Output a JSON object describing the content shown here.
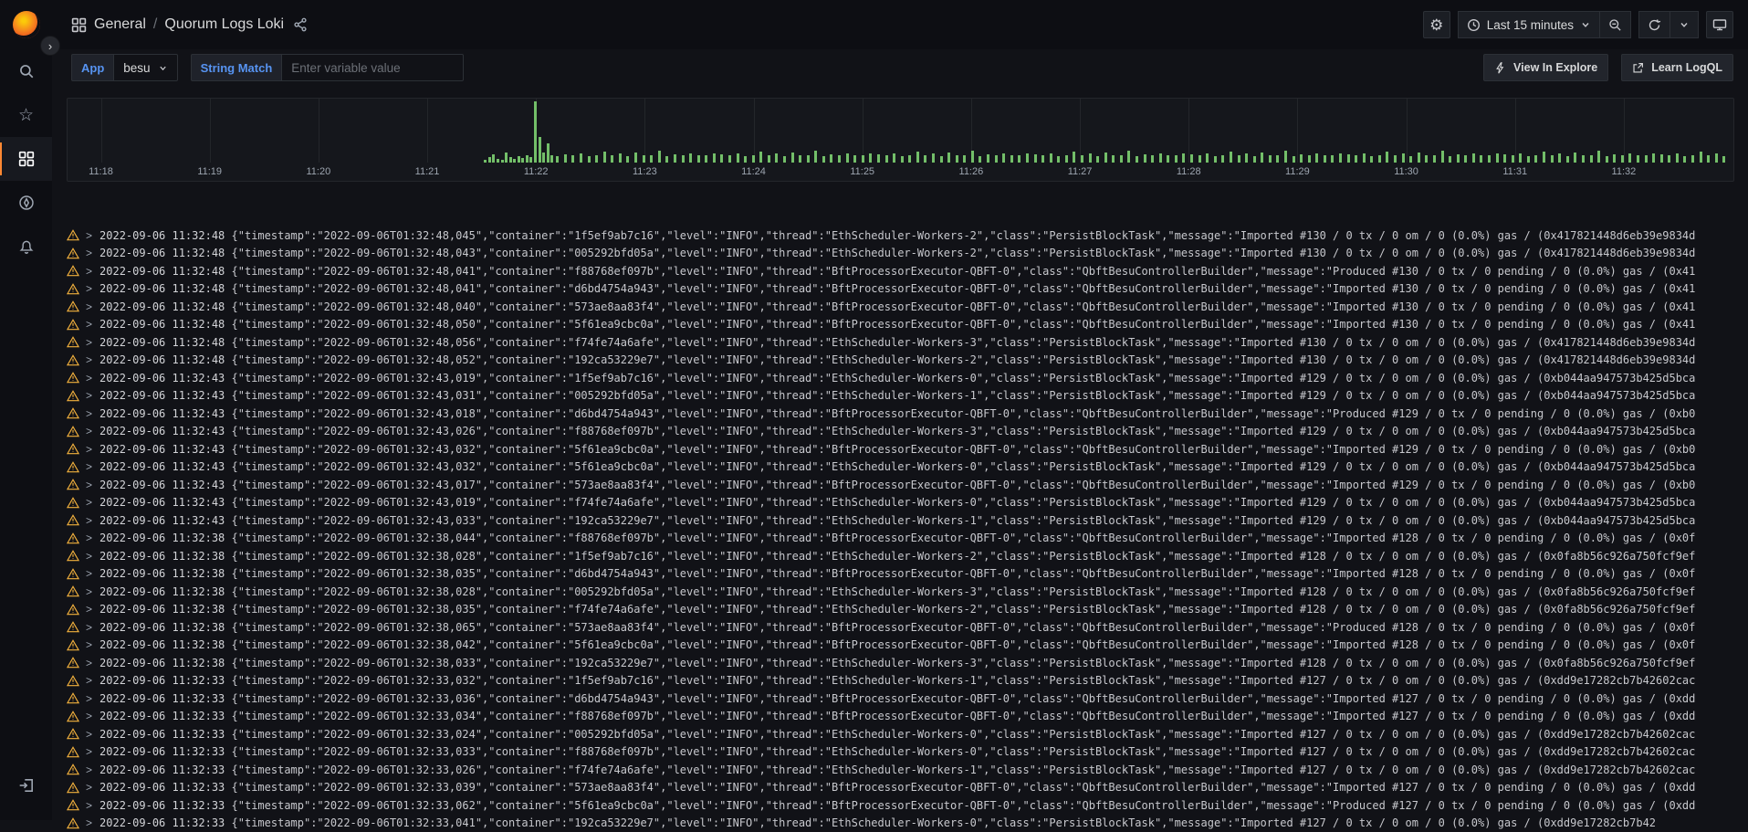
{
  "nav": {
    "breadcrumb": {
      "section": "General",
      "separator": "/",
      "page": "Quorum Logs Loki"
    },
    "time_range_label": "Last 15 minutes",
    "icons": [
      "dashboards-grid-icon",
      "share-icon",
      "gear-icon",
      "clock-icon",
      "chevron-down-icon",
      "zoom-out-icon",
      "refresh-icon",
      "tv-icon"
    ]
  },
  "sidebar": {
    "items": [
      "search",
      "starred",
      "dashboards",
      "explore",
      "alerting",
      "sign-in"
    ],
    "active_item": "dashboards",
    "expand_chevron": "›"
  },
  "variables": {
    "app": {
      "label": "App",
      "value": "besu"
    },
    "string_match": {
      "label": "String Match",
      "placeholder": "Enter variable value"
    }
  },
  "panel_actions": {
    "view_in_explore": "View In Explore",
    "learn_logql": "Learn LogQL"
  },
  "colors": {
    "bar_green": "#73BF69",
    "warning_yellow": "#F2B13D",
    "variable_blue": "#5794F2",
    "active_orange": "#FF8833"
  },
  "chart_data": {
    "type": "bar",
    "title": "",
    "xlabel": "",
    "ylabel": "",
    "legend": false,
    "x_ticks": [
      "11:18",
      "11:19",
      "11:20",
      "11:21",
      "11:22",
      "11:23",
      "11:24",
      "11:25",
      "11:26",
      "11:27",
      "11:28",
      "11:29",
      "11:30",
      "11:31",
      "11:32"
    ],
    "x_tick_positions_pct": [
      2.0,
      8.53,
      15.06,
      21.59,
      28.12,
      34.65,
      41.18,
      47.71,
      54.24,
      60.77,
      67.3,
      73.83,
      80.36,
      86.89,
      93.42
    ],
    "bar_color": "#73BF69",
    "cluster_bars": [
      [
        25.0,
        5
      ],
      [
        25.25,
        9
      ],
      [
        25.5,
        13
      ],
      [
        25.75,
        6
      ],
      [
        26.0,
        5
      ],
      [
        26.25,
        16
      ],
      [
        26.5,
        8
      ],
      [
        26.75,
        6
      ],
      [
        27.0,
        10
      ],
      [
        27.25,
        7
      ],
      [
        27.5,
        12
      ],
      [
        27.75,
        8
      ],
      [
        28.0,
        96
      ],
      [
        28.25,
        40
      ],
      [
        28.5,
        16
      ],
      [
        28.75,
        30
      ],
      [
        29.0,
        12
      ],
      [
        29.3,
        10
      ]
    ],
    "regular_bars": {
      "start_pct": 29.8,
      "end_pct": 99.7,
      "step_pct": 0.47,
      "height_cycle_pct": [
        13,
        11,
        15,
        10,
        12,
        17,
        11,
        14,
        10,
        16,
        12,
        11,
        18,
        10,
        13,
        11,
        15,
        11,
        12,
        14
      ]
    }
  },
  "logs": {
    "level": "INFO",
    "rows": [
      {
        "time": "2022-09-06 11:32:48",
        "ts": "2022-09-06T01:32:48,045",
        "container": "1f5ef9ab7c16",
        "level": "INFO",
        "thread": "EthScheduler-Workers-2",
        "class": "PersistBlockTask",
        "message": "Imported #130 / 0 tx / 0 om / 0 (0.0%) gas / (0x417821448d6eb39e9834d"
      },
      {
        "time": "2022-09-06 11:32:48",
        "ts": "2022-09-06T01:32:48,043",
        "container": "005292bfd05a",
        "level": "INFO",
        "thread": "EthScheduler-Workers-2",
        "class": "PersistBlockTask",
        "message": "Imported #130 / 0 tx / 0 om / 0 (0.0%) gas / (0x417821448d6eb39e9834d"
      },
      {
        "time": "2022-09-06 11:32:48",
        "ts": "2022-09-06T01:32:48,041",
        "container": "f88768ef097b",
        "level": "INFO",
        "thread": "BftProcessorExecutor-QBFT-0",
        "class": "QbftBesuControllerBuilder",
        "message": "Produced #130 / 0 tx / 0 pending / 0 (0.0%) gas / (0x41"
      },
      {
        "time": "2022-09-06 11:32:48",
        "ts": "2022-09-06T01:32:48,041",
        "container": "d6bd4754a943",
        "level": "INFO",
        "thread": "BftProcessorExecutor-QBFT-0",
        "class": "QbftBesuControllerBuilder",
        "message": "Imported #130 / 0 tx / 0 pending / 0 (0.0%) gas / (0x41"
      },
      {
        "time": "2022-09-06 11:32:48",
        "ts": "2022-09-06T01:32:48,040",
        "container": "573ae8aa83f4",
        "level": "INFO",
        "thread": "BftProcessorExecutor-QBFT-0",
        "class": "QbftBesuControllerBuilder",
        "message": "Imported #130 / 0 tx / 0 pending / 0 (0.0%) gas / (0x41"
      },
      {
        "time": "2022-09-06 11:32:48",
        "ts": "2022-09-06T01:32:48,050",
        "container": "5f61ea9cbc0a",
        "level": "INFO",
        "thread": "BftProcessorExecutor-QBFT-0",
        "class": "QbftBesuControllerBuilder",
        "message": "Imported #130 / 0 tx / 0 pending / 0 (0.0%) gas / (0x41"
      },
      {
        "time": "2022-09-06 11:32:48",
        "ts": "2022-09-06T01:32:48,056",
        "container": "f74fe74a6afe",
        "level": "INFO",
        "thread": "EthScheduler-Workers-3",
        "class": "PersistBlockTask",
        "message": "Imported #130 / 0 tx / 0 om / 0 (0.0%) gas / (0x417821448d6eb39e9834d"
      },
      {
        "time": "2022-09-06 11:32:48",
        "ts": "2022-09-06T01:32:48,052",
        "container": "192ca53229e7",
        "level": "INFO",
        "thread": "EthScheduler-Workers-2",
        "class": "PersistBlockTask",
        "message": "Imported #130 / 0 tx / 0 om / 0 (0.0%) gas / (0x417821448d6eb39e9834d"
      },
      {
        "time": "2022-09-06 11:32:43",
        "ts": "2022-09-06T01:32:43,019",
        "container": "1f5ef9ab7c16",
        "level": "INFO",
        "thread": "EthScheduler-Workers-0",
        "class": "PersistBlockTask",
        "message": "Imported #129 / 0 tx / 0 om / 0 (0.0%) gas / (0xb044aa947573b425d5bca"
      },
      {
        "time": "2022-09-06 11:32:43",
        "ts": "2022-09-06T01:32:43,031",
        "container": "005292bfd05a",
        "level": "INFO",
        "thread": "EthScheduler-Workers-1",
        "class": "PersistBlockTask",
        "message": "Imported #129 / 0 tx / 0 om / 0 (0.0%) gas / (0xb044aa947573b425d5bca"
      },
      {
        "time": "2022-09-06 11:32:43",
        "ts": "2022-09-06T01:32:43,018",
        "container": "d6bd4754a943",
        "level": "INFO",
        "thread": "BftProcessorExecutor-QBFT-0",
        "class": "QbftBesuControllerBuilder",
        "message": "Produced #129 / 0 tx / 0 pending / 0 (0.0%) gas / (0xb0"
      },
      {
        "time": "2022-09-06 11:32:43",
        "ts": "2022-09-06T01:32:43,026",
        "container": "f88768ef097b",
        "level": "INFO",
        "thread": "EthScheduler-Workers-3",
        "class": "PersistBlockTask",
        "message": "Imported #129 / 0 tx / 0 om / 0 (0.0%) gas / (0xb044aa947573b425d5bca"
      },
      {
        "time": "2022-09-06 11:32:43",
        "ts": "2022-09-06T01:32:43,032",
        "container": "5f61ea9cbc0a",
        "level": "INFO",
        "thread": "BftProcessorExecutor-QBFT-0",
        "class": "QbftBesuControllerBuilder",
        "message": "Imported #129 / 0 tx / 0 pending / 0 (0.0%) gas / (0xb0"
      },
      {
        "time": "2022-09-06 11:32:43",
        "ts": "2022-09-06T01:32:43,032",
        "container": "5f61ea9cbc0a",
        "level": "INFO",
        "thread": "EthScheduler-Workers-0",
        "class": "PersistBlockTask",
        "message": "Imported #129 / 0 tx / 0 om / 0 (0.0%) gas / (0xb044aa947573b425d5bca"
      },
      {
        "time": "2022-09-06 11:32:43",
        "ts": "2022-09-06T01:32:43,017",
        "container": "573ae8aa83f4",
        "level": "INFO",
        "thread": "BftProcessorExecutor-QBFT-0",
        "class": "QbftBesuControllerBuilder",
        "message": "Imported #129 / 0 tx / 0 pending / 0 (0.0%) gas / (0xb0"
      },
      {
        "time": "2022-09-06 11:32:43",
        "ts": "2022-09-06T01:32:43,019",
        "container": "f74fe74a6afe",
        "level": "INFO",
        "thread": "EthScheduler-Workers-0",
        "class": "PersistBlockTask",
        "message": "Imported #129 / 0 tx / 0 om / 0 (0.0%) gas / (0xb044aa947573b425d5bca"
      },
      {
        "time": "2022-09-06 11:32:43",
        "ts": "2022-09-06T01:32:43,033",
        "container": "192ca53229e7",
        "level": "INFO",
        "thread": "EthScheduler-Workers-1",
        "class": "PersistBlockTask",
        "message": "Imported #129 / 0 tx / 0 om / 0 (0.0%) gas / (0xb044aa947573b425d5bca"
      },
      {
        "time": "2022-09-06 11:32:38",
        "ts": "2022-09-06T01:32:38,044",
        "container": "f88768ef097b",
        "level": "INFO",
        "thread": "BftProcessorExecutor-QBFT-0",
        "class": "QbftBesuControllerBuilder",
        "message": "Imported #128 / 0 tx / 0 pending / 0 (0.0%) gas / (0x0f"
      },
      {
        "time": "2022-09-06 11:32:38",
        "ts": "2022-09-06T01:32:38,028",
        "container": "1f5ef9ab7c16",
        "level": "INFO",
        "thread": "EthScheduler-Workers-2",
        "class": "PersistBlockTask",
        "message": "Imported #128 / 0 tx / 0 om / 0 (0.0%) gas / (0x0fa8b56c926a750fcf9ef"
      },
      {
        "time": "2022-09-06 11:32:38",
        "ts": "2022-09-06T01:32:38,035",
        "container": "d6bd4754a943",
        "level": "INFO",
        "thread": "BftProcessorExecutor-QBFT-0",
        "class": "QbftBesuControllerBuilder",
        "message": "Imported #128 / 0 tx / 0 pending / 0 (0.0%) gas / (0x0f"
      },
      {
        "time": "2022-09-06 11:32:38",
        "ts": "2022-09-06T01:32:38,028",
        "container": "005292bfd05a",
        "level": "INFO",
        "thread": "EthScheduler-Workers-3",
        "class": "PersistBlockTask",
        "message": "Imported #128 / 0 tx / 0 om / 0 (0.0%) gas / (0x0fa8b56c926a750fcf9ef"
      },
      {
        "time": "2022-09-06 11:32:38",
        "ts": "2022-09-06T01:32:38,035",
        "container": "f74fe74a6afe",
        "level": "INFO",
        "thread": "EthScheduler-Workers-2",
        "class": "PersistBlockTask",
        "message": "Imported #128 / 0 tx / 0 om / 0 (0.0%) gas / (0x0fa8b56c926a750fcf9ef"
      },
      {
        "time": "2022-09-06 11:32:38",
        "ts": "2022-09-06T01:32:38,065",
        "container": "573ae8aa83f4",
        "level": "INFO",
        "thread": "BftProcessorExecutor-QBFT-0",
        "class": "QbftBesuControllerBuilder",
        "message": "Produced #128 / 0 tx / 0 pending / 0 (0.0%) gas / (0x0f"
      },
      {
        "time": "2022-09-06 11:32:38",
        "ts": "2022-09-06T01:32:38,042",
        "container": "5f61ea9cbc0a",
        "level": "INFO",
        "thread": "BftProcessorExecutor-QBFT-0",
        "class": "QbftBesuControllerBuilder",
        "message": "Imported #128 / 0 tx / 0 pending / 0 (0.0%) gas / (0x0f"
      },
      {
        "time": "2022-09-06 11:32:38",
        "ts": "2022-09-06T01:32:38,033",
        "container": "192ca53229e7",
        "level": "INFO",
        "thread": "EthScheduler-Workers-3",
        "class": "PersistBlockTask",
        "message": "Imported #128 / 0 tx / 0 om / 0 (0.0%) gas / (0x0fa8b56c926a750fcf9ef"
      },
      {
        "time": "2022-09-06 11:32:33",
        "ts": "2022-09-06T01:32:33,032",
        "container": "1f5ef9ab7c16",
        "level": "INFO",
        "thread": "EthScheduler-Workers-1",
        "class": "PersistBlockTask",
        "message": "Imported #127 / 0 tx / 0 om / 0 (0.0%) gas / (0xdd9e17282cb7b42602cac"
      },
      {
        "time": "2022-09-06 11:32:33",
        "ts": "2022-09-06T01:32:33,036",
        "container": "d6bd4754a943",
        "level": "INFO",
        "thread": "BftProcessorExecutor-QBFT-0",
        "class": "QbftBesuControllerBuilder",
        "message": "Imported #127 / 0 tx / 0 pending / 0 (0.0%) gas / (0xdd"
      },
      {
        "time": "2022-09-06 11:32:33",
        "ts": "2022-09-06T01:32:33,034",
        "container": "f88768ef097b",
        "level": "INFO",
        "thread": "BftProcessorExecutor-QBFT-0",
        "class": "QbftBesuControllerBuilder",
        "message": "Imported #127 / 0 tx / 0 pending / 0 (0.0%) gas / (0xdd"
      },
      {
        "time": "2022-09-06 11:32:33",
        "ts": "2022-09-06T01:32:33,024",
        "container": "005292bfd05a",
        "level": "INFO",
        "thread": "EthScheduler-Workers-0",
        "class": "PersistBlockTask",
        "message": "Imported #127 / 0 tx / 0 om / 0 (0.0%) gas / (0xdd9e17282cb7b42602cac"
      },
      {
        "time": "2022-09-06 11:32:33",
        "ts": "2022-09-06T01:32:33,033",
        "container": "f88768ef097b",
        "level": "INFO",
        "thread": "EthScheduler-Workers-0",
        "class": "PersistBlockTask",
        "message": "Imported #127 / 0 tx / 0 om / 0 (0.0%) gas / (0xdd9e17282cb7b42602cac"
      },
      {
        "time": "2022-09-06 11:32:33",
        "ts": "2022-09-06T01:32:33,026",
        "container": "f74fe74a6afe",
        "level": "INFO",
        "thread": "EthScheduler-Workers-1",
        "class": "PersistBlockTask",
        "message": "Imported #127 / 0 tx / 0 om / 0 (0.0%) gas / (0xdd9e17282cb7b42602cac"
      },
      {
        "time": "2022-09-06 11:32:33",
        "ts": "2022-09-06T01:32:33,039",
        "container": "573ae8aa83f4",
        "level": "INFO",
        "thread": "BftProcessorExecutor-QBFT-0",
        "class": "QbftBesuControllerBuilder",
        "message": "Imported #127 / 0 tx / 0 pending / 0 (0.0%) gas / (0xdd"
      },
      {
        "time": "2022-09-06 11:32:33",
        "ts": "2022-09-06T01:32:33,062",
        "container": "5f61ea9cbc0a",
        "level": "INFO",
        "thread": "BftProcessorExecutor-QBFT-0",
        "class": "QbftBesuControllerBuilder",
        "message": "Produced #127 / 0 tx / 0 pending / 0 (0.0%) gas / (0xdd"
      },
      {
        "time": "2022-09-06 11:32:33",
        "ts": "2022-09-06T01:32:33,041",
        "container": "192ca53229e7",
        "level": "INFO",
        "thread": "EthScheduler-Workers-0",
        "class": "PersistBlockTask",
        "message": "Imported #127 / 0 tx / 0 om / 0 (0.0%) gas / (0xdd9e17282cb7b42"
      }
    ]
  }
}
